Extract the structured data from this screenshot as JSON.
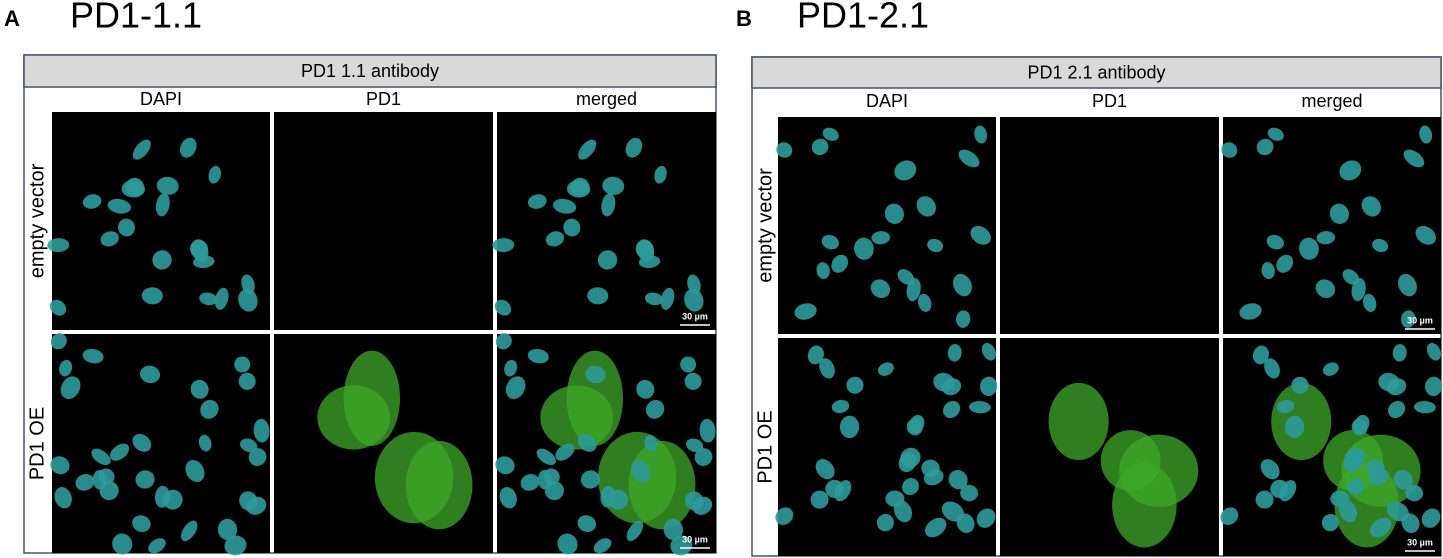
{
  "panels": [
    {
      "letter": "A",
      "title": "PD1-1.1",
      "header": "PD1 1.1 antibody",
      "columns": [
        "DAPI",
        "PD1",
        "merged"
      ],
      "rows": [
        "empty vector",
        "PD1 OE"
      ],
      "scale_bar": "30 µm"
    },
    {
      "letter": "B",
      "title": "PD1-2.1",
      "header": "PD1 2.1 antibody",
      "columns": [
        "DAPI",
        "PD1",
        "merged"
      ],
      "rows": [
        "empty vector",
        "PD1 OE"
      ],
      "scale_bar": "30 µm"
    }
  ]
}
